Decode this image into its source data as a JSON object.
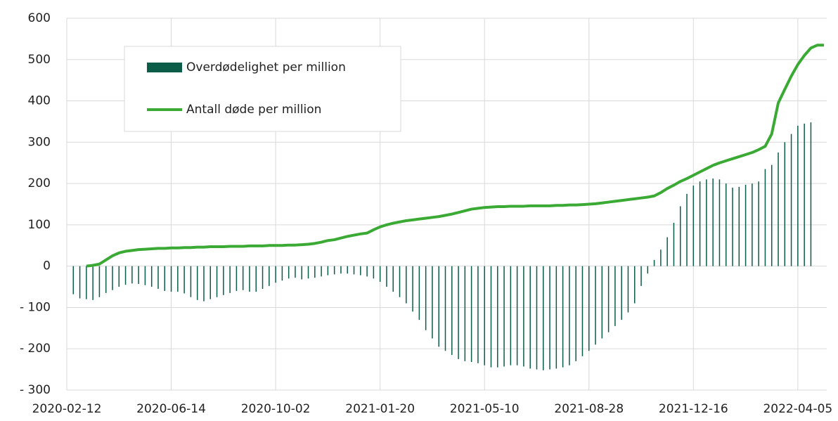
{
  "chart_data": {
    "type": "combo",
    "ylim": [
      -300,
      600
    ],
    "yticks": [
      {
        "value": -300,
        "label": "- 300"
      },
      {
        "value": -200,
        "label": "- 200"
      },
      {
        "value": -100,
        "label": "- 100"
      },
      0,
      100,
      200,
      300,
      400,
      500,
      600
    ],
    "grid": true,
    "legend": "upper left",
    "categories": [
      "2020-02-12",
      null,
      null,
      null,
      null,
      null,
      null,
      null,
      null,
      null,
      null,
      null,
      null,
      null,
      null,
      null,
      "2020-06-14",
      null,
      null,
      null,
      null,
      null,
      null,
      null,
      null,
      null,
      null,
      null,
      null,
      null,
      null,
      null,
      "2020-10-02",
      null,
      null,
      null,
      null,
      null,
      null,
      null,
      null,
      null,
      null,
      null,
      null,
      null,
      null,
      null,
      "2021-01-20",
      null,
      null,
      null,
      null,
      null,
      null,
      null,
      null,
      null,
      null,
      null,
      null,
      null,
      null,
      null,
      "2021-05-10",
      null,
      null,
      null,
      null,
      null,
      null,
      null,
      null,
      null,
      null,
      null,
      null,
      null,
      null,
      null,
      "2021-08-28",
      null,
      null,
      null,
      null,
      null,
      null,
      null,
      null,
      null,
      null,
      null,
      null,
      null,
      null,
      null,
      "2021-12-16",
      null,
      null,
      null,
      null,
      null,
      null,
      null,
      null,
      null,
      null,
      null,
      null,
      null,
      null,
      null,
      "2022-04-05",
      null,
      null,
      null,
      null
    ],
    "series": [
      {
        "name": "Overdødelighet per million",
        "type": "bar",
        "color": "#0b5d49",
        "values": [
          null,
          -68,
          -78,
          -80,
          -82,
          -75,
          -65,
          -58,
          -50,
          -45,
          -42,
          -43,
          -46,
          -50,
          -55,
          -60,
          -62,
          -62,
          -66,
          -75,
          -82,
          -85,
          -80,
          -75,
          -70,
          -65,
          -60,
          -58,
          -62,
          -62,
          -55,
          -48,
          -40,
          -35,
          -30,
          -28,
          -32,
          -30,
          -28,
          -25,
          -22,
          -20,
          -18,
          -18,
          -20,
          -22,
          -25,
          -30,
          -38,
          -50,
          -62,
          -75,
          -90,
          -110,
          -130,
          -155,
          -175,
          -195,
          -205,
          -215,
          -225,
          -230,
          -232,
          -235,
          -240,
          -245,
          -245,
          -243,
          -240,
          -240,
          -243,
          -248,
          -250,
          -252,
          -250,
          -248,
          -245,
          -240,
          -230,
          -218,
          -205,
          -190,
          -175,
          -160,
          -145,
          -130,
          -112,
          -90,
          -48,
          -18,
          15,
          40,
          70,
          105,
          145,
          175,
          195,
          205,
          210,
          212,
          210,
          200,
          190,
          192,
          197,
          200,
          205,
          235,
          245,
          275,
          300,
          320,
          340,
          345,
          348,
          null,
          null
        ]
      },
      {
        "name": "Antall døde per million",
        "type": "line",
        "color": "#3aaa35",
        "values": [
          null,
          null,
          null,
          0,
          2,
          5,
          15,
          25,
          32,
          36,
          38,
          40,
          41,
          42,
          43,
          43,
          44,
          44,
          45,
          45,
          46,
          46,
          47,
          47,
          47,
          48,
          48,
          48,
          49,
          49,
          49,
          50,
          50,
          50,
          51,
          51,
          52,
          53,
          55,
          58,
          62,
          64,
          68,
          72,
          75,
          78,
          80,
          88,
          95,
          100,
          104,
          107,
          110,
          112,
          114,
          116,
          118,
          120,
          123,
          126,
          130,
          134,
          138,
          140,
          142,
          143,
          144,
          144,
          145,
          145,
          145,
          146,
          146,
          146,
          146,
          147,
          147,
          148,
          148,
          149,
          150,
          151,
          153,
          155,
          157,
          159,
          161,
          163,
          165,
          167,
          170,
          178,
          188,
          196,
          205,
          212,
          220,
          228,
          236,
          244,
          250,
          255,
          260,
          265,
          270,
          275,
          282,
          290,
          320,
          395,
          428,
          460,
          488,
          510,
          528,
          535,
          535
        ]
      }
    ]
  }
}
